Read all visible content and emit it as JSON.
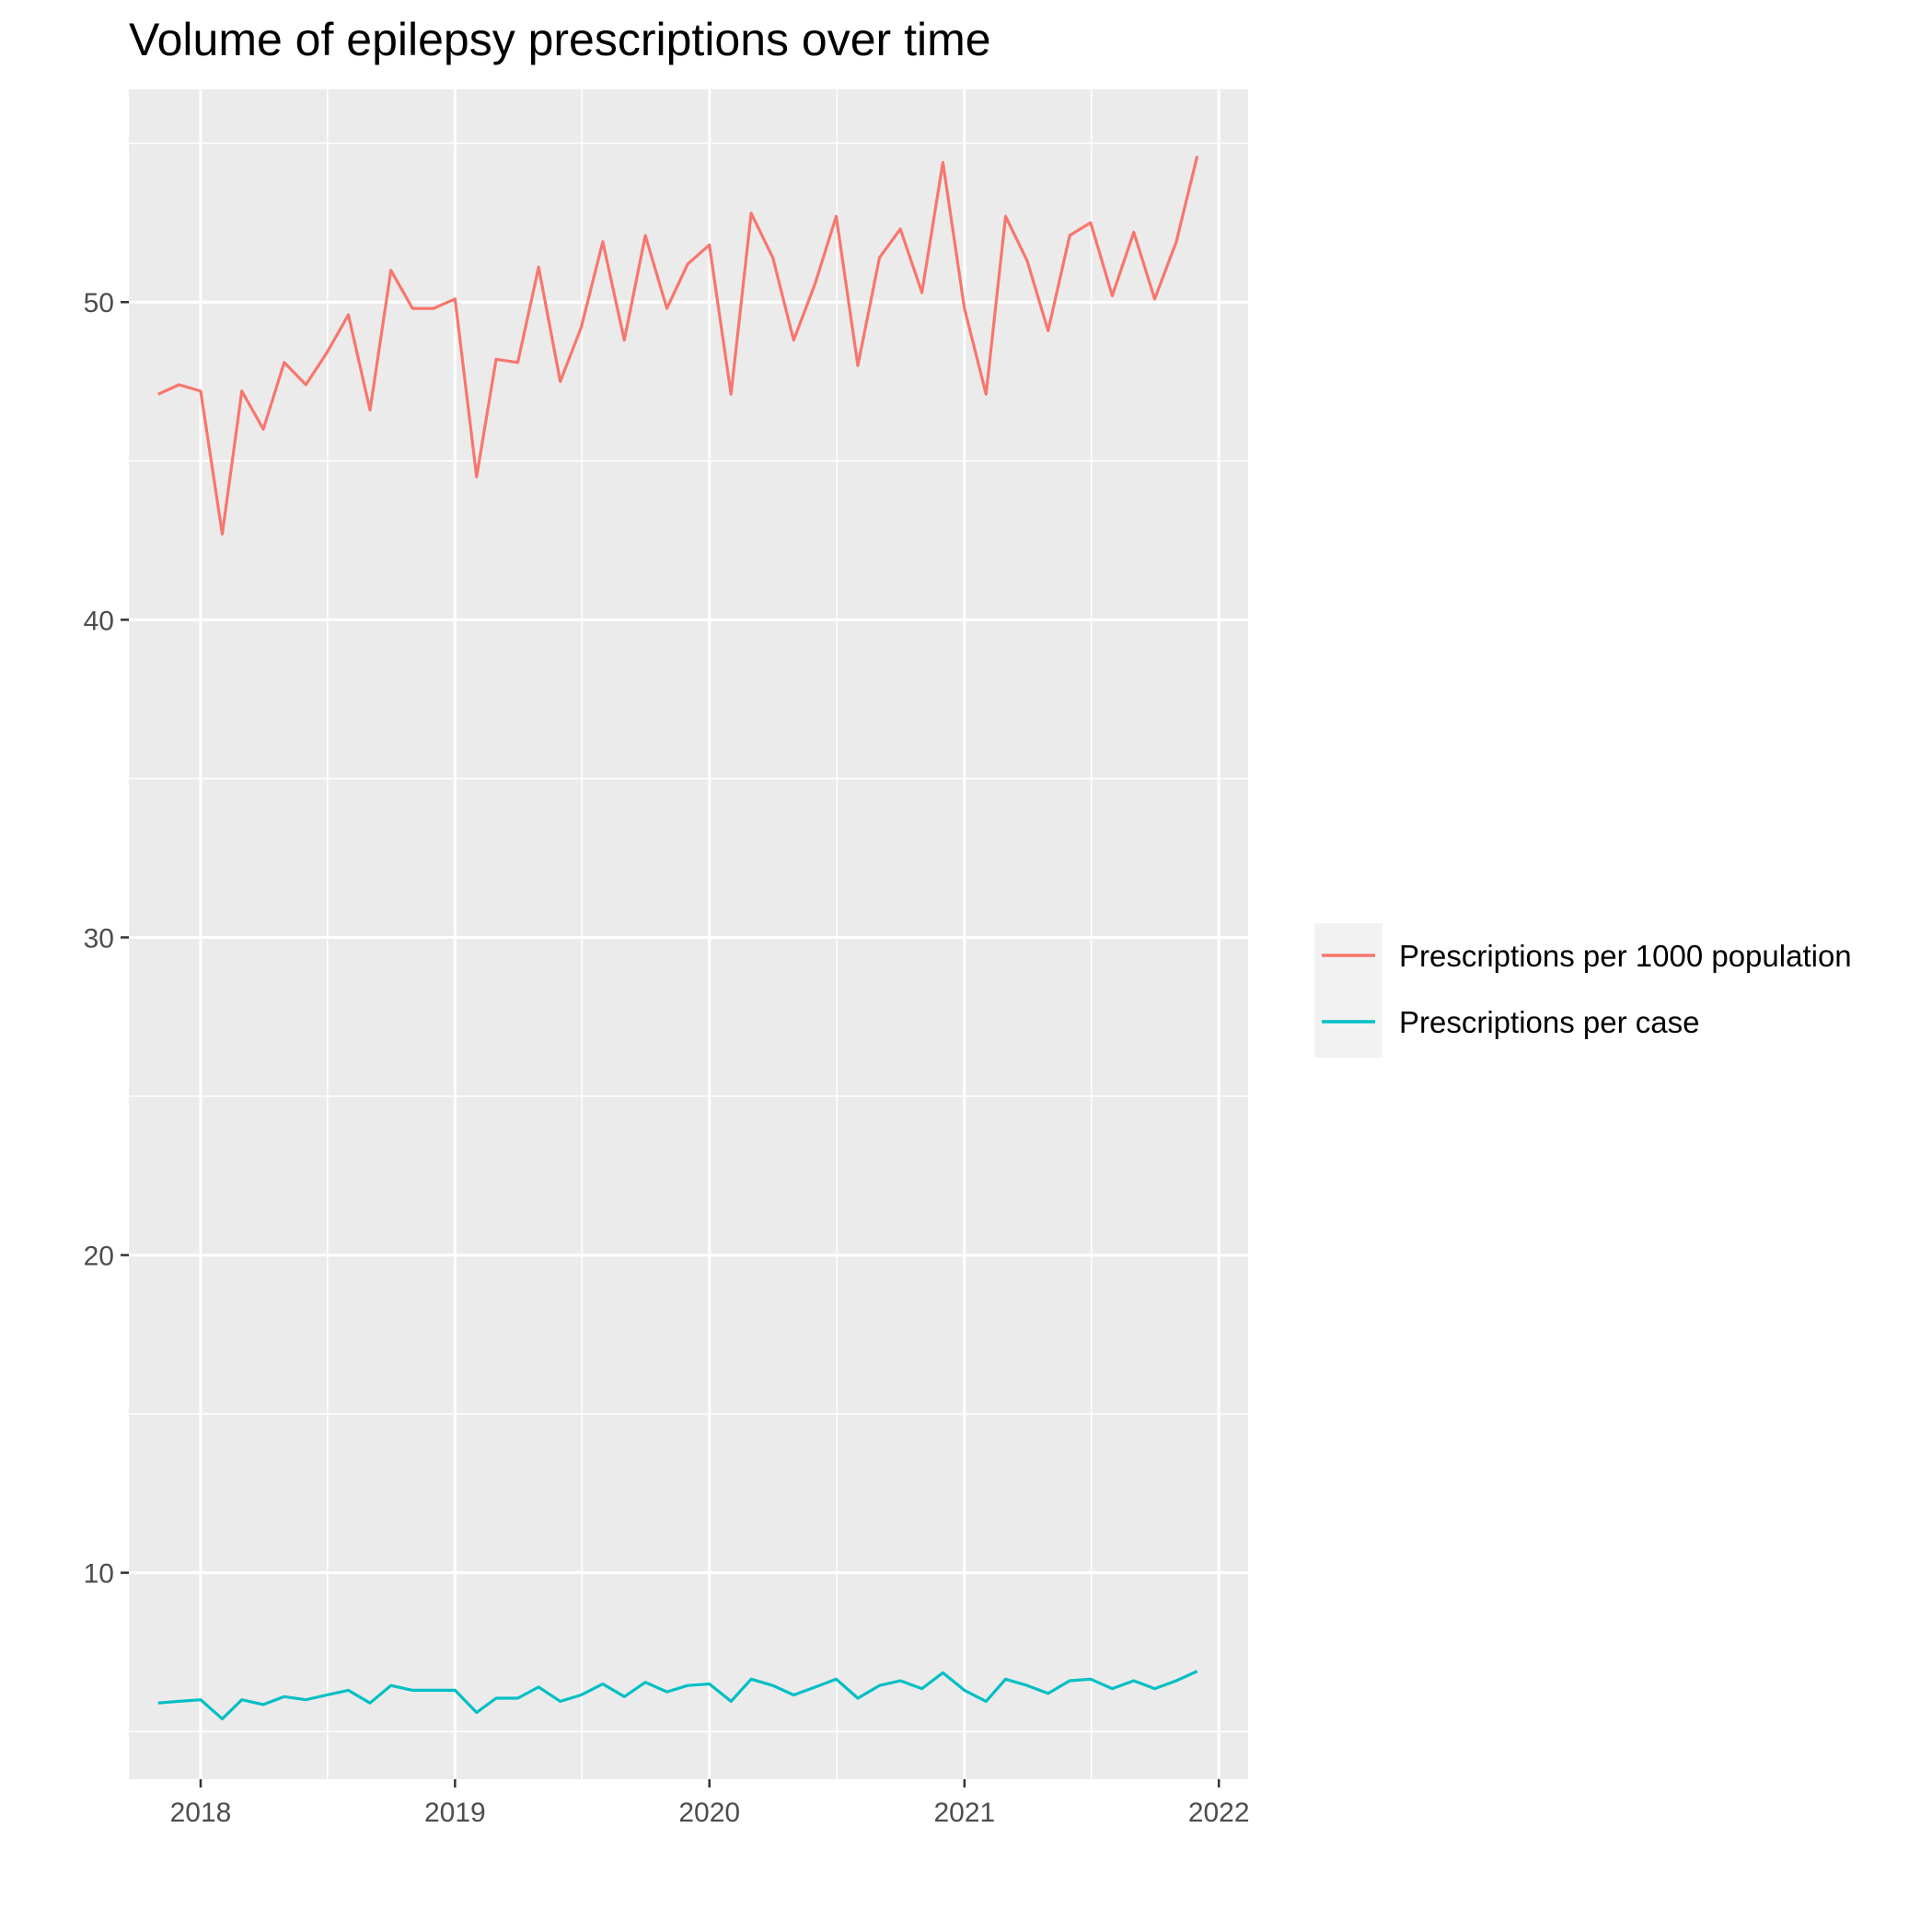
{
  "chart_data": {
    "type": "line",
    "title": "Volume of epilepsy prescriptions over time",
    "xlabel": "",
    "ylabel": "",
    "x_ticks": [
      "2018",
      "2019",
      "2020",
      "2021",
      "2022"
    ],
    "y_ticks": [
      "10",
      "20",
      "30",
      "40",
      "50"
    ],
    "xlim": [
      "2017-09-20",
      "2022-02-12"
    ],
    "ylim": [
      3.5,
      56.7
    ],
    "grid": true,
    "legend_position": "right",
    "x": [
      "2017-11-01",
      "2017-12-01",
      "2018-01-01",
      "2018-02-01",
      "2018-03-01",
      "2018-04-01",
      "2018-05-01",
      "2018-06-01",
      "2018-07-01",
      "2018-08-01",
      "2018-09-01",
      "2018-10-01",
      "2018-11-01",
      "2018-12-01",
      "2019-01-01",
      "2019-02-01",
      "2019-03-01",
      "2019-04-01",
      "2019-05-01",
      "2019-06-01",
      "2019-07-01",
      "2019-08-01",
      "2019-09-01",
      "2019-10-01",
      "2019-11-01",
      "2019-12-01",
      "2020-01-01",
      "2020-02-01",
      "2020-03-01",
      "2020-04-01",
      "2020-05-01",
      "2020-06-01",
      "2020-07-01",
      "2020-08-01",
      "2020-09-01",
      "2020-10-01",
      "2020-11-01",
      "2020-12-01",
      "2021-01-01",
      "2021-02-01",
      "2021-03-01",
      "2021-04-01",
      "2021-05-01",
      "2021-06-01",
      "2021-07-01",
      "2021-08-01",
      "2021-09-01",
      "2021-10-01",
      "2021-11-01",
      "2021-12-01"
    ],
    "series": [
      {
        "name": "Prescriptions per 1000 population",
        "color": "#F8766D",
        "values": [
          47.1,
          47.4,
          47.2,
          42.7,
          47.2,
          46.0,
          48.1,
          47.4,
          48.4,
          49.6,
          46.6,
          51.0,
          49.8,
          49.8,
          50.1,
          44.5,
          48.2,
          48.1,
          51.1,
          47.5,
          49.2,
          51.9,
          48.8,
          52.1,
          49.8,
          51.2,
          51.8,
          47.1,
          52.8,
          51.4,
          48.8,
          50.6,
          52.7,
          48.0,
          51.4,
          52.3,
          50.3,
          54.4,
          49.8,
          47.1,
          52.7,
          51.3,
          49.1,
          52.1,
          52.5,
          50.2,
          52.2,
          50.1,
          51.9,
          54.6
        ]
      },
      {
        "name": "Prescriptions per case",
        "color": "#00BFC4",
        "values": [
          5.9,
          5.95,
          6.0,
          5.4,
          6.0,
          5.85,
          6.1,
          6.0,
          6.15,
          6.3,
          5.9,
          6.45,
          6.3,
          6.3,
          6.3,
          5.6,
          6.05,
          6.05,
          6.4,
          5.95,
          6.15,
          6.5,
          6.1,
          6.55,
          6.25,
          6.45,
          6.5,
          5.95,
          6.65,
          6.45,
          6.15,
          6.4,
          6.65,
          6.05,
          6.45,
          6.6,
          6.35,
          6.85,
          6.3,
          5.95,
          6.65,
          6.45,
          6.2,
          6.6,
          6.65,
          6.35,
          6.6,
          6.35,
          6.6,
          6.9
        ]
      }
    ]
  }
}
